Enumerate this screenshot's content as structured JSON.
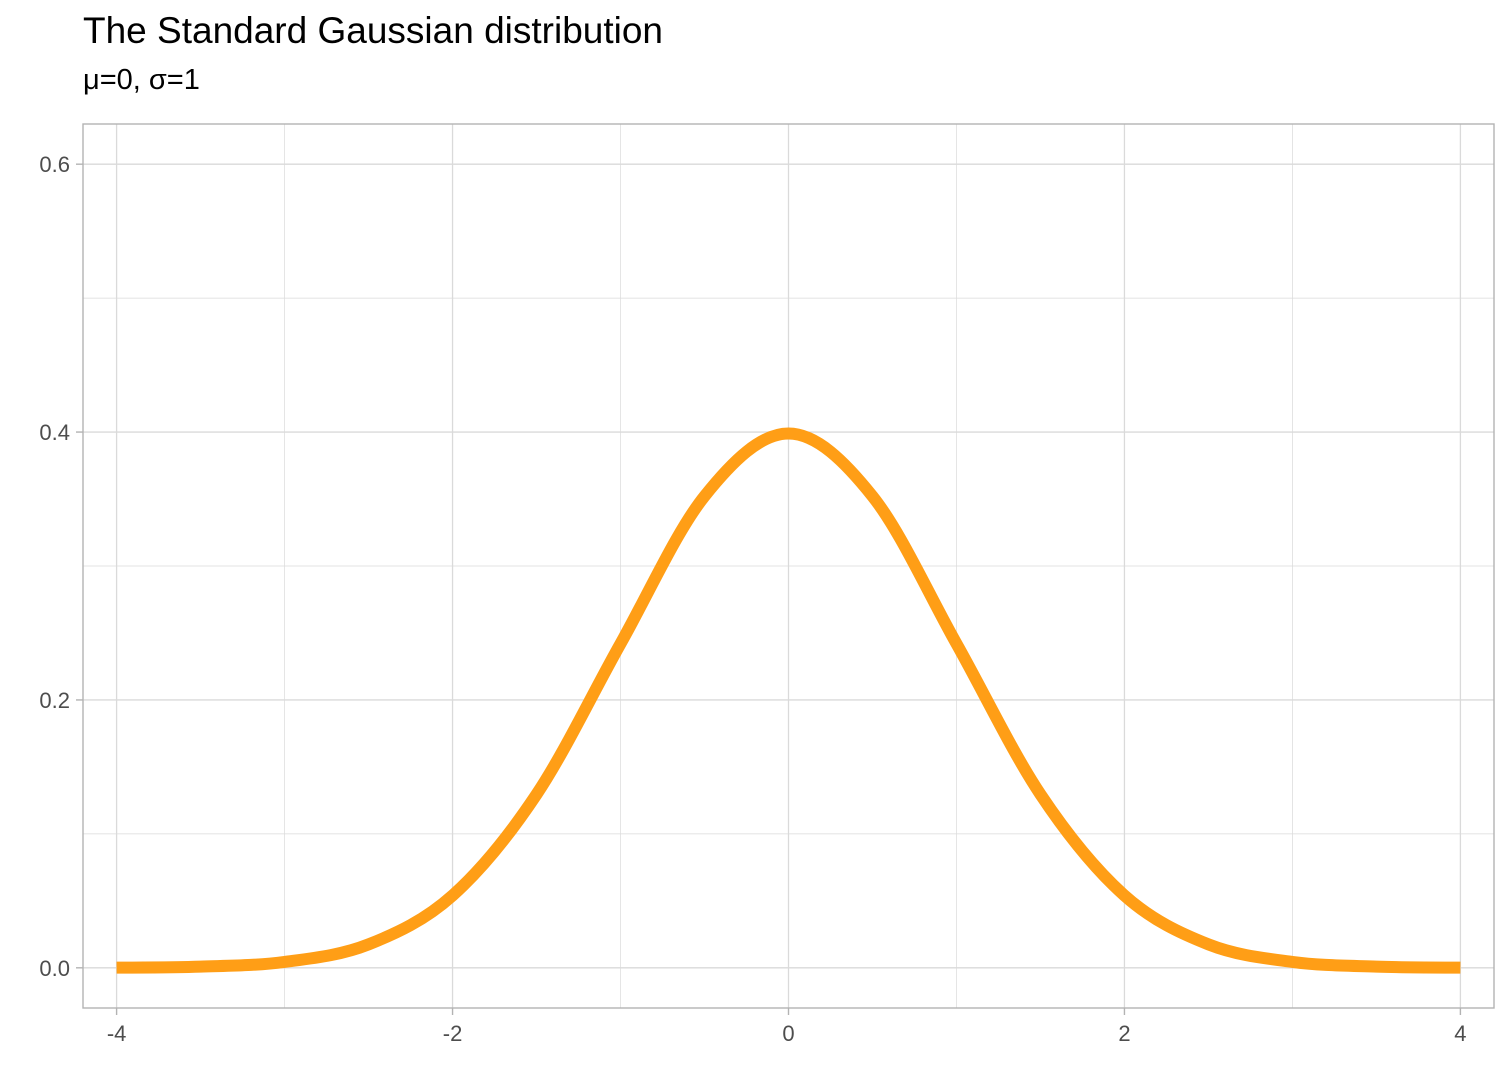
{
  "chart_data": {
    "type": "line",
    "title": "The Standard Gaussian distribution",
    "subtitle": "μ=0, σ=1",
    "xlabel": "",
    "ylabel": "",
    "xlim": [
      -4.2,
      4.2
    ],
    "ylim": [
      -0.03,
      0.63
    ],
    "x_ticks": [
      -4,
      -2,
      0,
      2,
      4
    ],
    "x_tick_labels": [
      "-4",
      "-2",
      "0",
      "2",
      "4"
    ],
    "y_ticks": [
      0.0,
      0.2,
      0.4,
      0.6
    ],
    "y_tick_labels": [
      "0.0",
      "0.2",
      "0.4",
      "0.6"
    ],
    "x_minor_ticks": [
      -3,
      -1,
      1,
      3
    ],
    "y_minor_ticks": [
      0.1,
      0.3,
      0.5
    ],
    "grid": true,
    "series": [
      {
        "color": "#ff9e16",
        "x": [
          -4,
          -3.5,
          -3,
          -2.5,
          -2,
          -1.5,
          -1,
          -0.5,
          0,
          0.5,
          1,
          1.5,
          2,
          2.5,
          3,
          3.5,
          4
        ],
        "y": [
          0.0001,
          0.0009,
          0.0044,
          0.0175,
          0.054,
          0.1295,
          0.242,
          0.3521,
          0.3989,
          0.3521,
          0.242,
          0.1295,
          0.054,
          0.0175,
          0.0044,
          0.0009,
          0.0001
        ]
      }
    ],
    "colors": {
      "line": "#ff9e16",
      "grid": "#dadada",
      "panel_border": "#b3b3b3",
      "tick_text": "#4d4d4d"
    }
  }
}
